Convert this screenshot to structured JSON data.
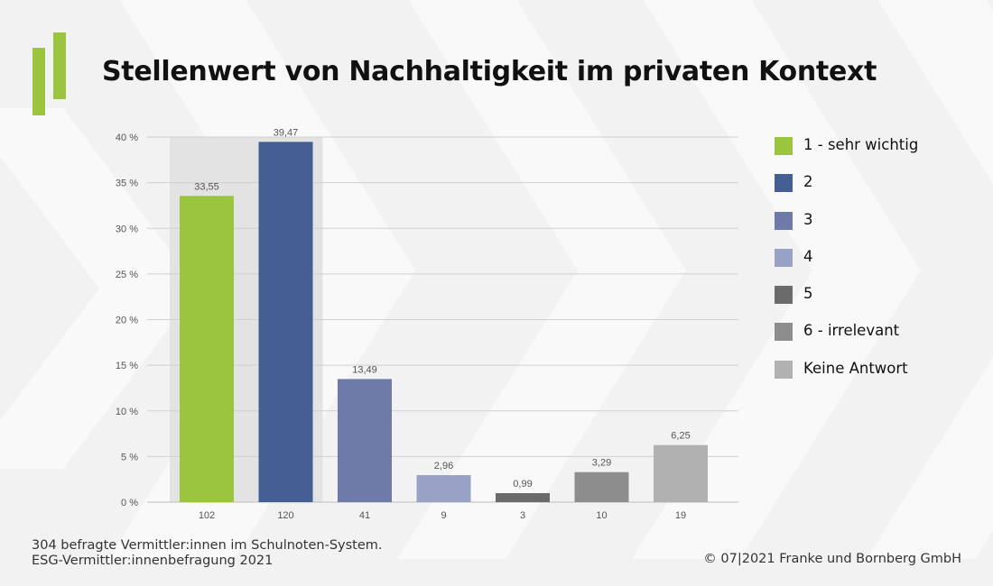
{
  "title": "Stellenwert von Nachhaltigkeit im privaten Kontext",
  "footnote_line1": "304 befragte Vermittler:innen im Schulnoten-System.",
  "footnote_line2": "ESG-Vermittler:innenbefragung 2021",
  "copyright": "© 07|2021 Franke und Bornberg GmbH",
  "brand_color": "#9bc43f",
  "logo_icon": "green-bars-logo-icon",
  "chart_data": {
    "type": "bar",
    "categories": [
      "102",
      "120",
      "41",
      "9",
      "3",
      "10",
      "19"
    ],
    "series": [
      {
        "values": [
          33.55,
          39.47,
          13.49,
          2.96,
          0.99,
          3.29,
          6.25
        ],
        "value_labels": [
          "33,55",
          "39,47",
          "13,49",
          "2,96",
          "0,99",
          "3,29",
          "6,25"
        ],
        "colors": [
          "#9bc43f",
          "#435f94",
          "#6e7ba8",
          "#98a1c6",
          "#6b6b6b",
          "#8d8d8d",
          "#b1b1b1"
        ]
      }
    ],
    "legend": {
      "placement": "right",
      "entries": [
        {
          "label": "1 - sehr wichtig",
          "color": "#9bc43f"
        },
        {
          "label": "2",
          "color": "#435f94"
        },
        {
          "label": "3",
          "color": "#6e7ba8"
        },
        {
          "label": "4",
          "color": "#98a1c6"
        },
        {
          "label": "5",
          "color": "#6b6b6b"
        },
        {
          "label": "6 - irrelevant",
          "color": "#8d8d8d"
        },
        {
          "label": "Keine Antwort",
          "color": "#b1b1b1"
        }
      ]
    },
    "yticks": [
      "0 %",
      "5 %",
      "10 %",
      "15 %",
      "20 %",
      "25 %",
      "30 %",
      "35 %",
      "40 %"
    ],
    "ylim": [
      0,
      40
    ],
    "grid": true,
    "highlight_categories": [
      "102",
      "120"
    ]
  }
}
